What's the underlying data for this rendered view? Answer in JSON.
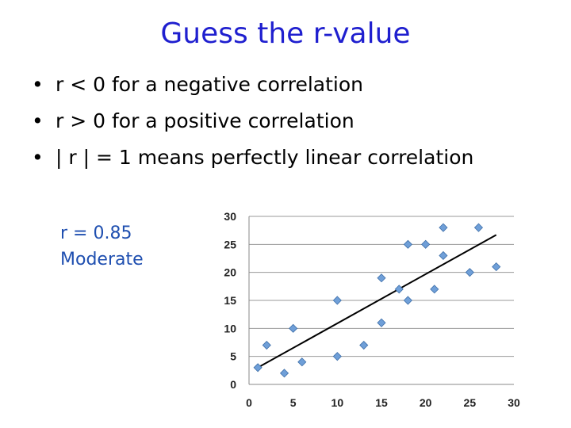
{
  "slide": {
    "title": "Guess the r-value",
    "bullets": [
      "r < 0 for a negative correlation",
      "r > 0  for a positive correlation",
      "| r | = 1 means perfectly linear correlation"
    ],
    "annotation": [
      "r = 0.85",
      "Moderate"
    ],
    "bullet_symbol": "•"
  },
  "chart_data": {
    "type": "scatter",
    "title": "",
    "xlabel": "",
    "ylabel": "",
    "xlim": [
      0,
      30
    ],
    "ylim": [
      0,
      30
    ],
    "xticks": [
      0,
      5,
      10,
      15,
      20,
      25,
      30
    ],
    "yticks": [
      0,
      5,
      10,
      15,
      20,
      25,
      30
    ],
    "grid": "horizontal",
    "marker_color": "#6f9fd8",
    "marker_edge": "#3d6ea8",
    "line_color": "#000000",
    "points": [
      {
        "x": 1,
        "y": 3
      },
      {
        "x": 2,
        "y": 7
      },
      {
        "x": 4,
        "y": 2
      },
      {
        "x": 5,
        "y": 10
      },
      {
        "x": 6,
        "y": 4
      },
      {
        "x": 10,
        "y": 5
      },
      {
        "x": 10,
        "y": 15
      },
      {
        "x": 13,
        "y": 7
      },
      {
        "x": 15,
        "y": 11
      },
      {
        "x": 15,
        "y": 19
      },
      {
        "x": 17,
        "y": 17
      },
      {
        "x": 18,
        "y": 15
      },
      {
        "x": 18,
        "y": 25
      },
      {
        "x": 20,
        "y": 25
      },
      {
        "x": 21,
        "y": 17
      },
      {
        "x": 22,
        "y": 23
      },
      {
        "x": 22,
        "y": 28
      },
      {
        "x": 25,
        "y": 20
      },
      {
        "x": 26,
        "y": 28
      },
      {
        "x": 28,
        "y": 21
      }
    ],
    "trendline": {
      "x": [
        1,
        28
      ],
      "y": [
        3,
        26.7
      ]
    }
  }
}
